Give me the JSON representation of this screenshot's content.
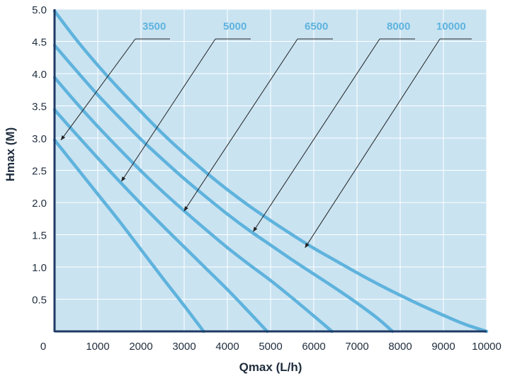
{
  "chart_data": {
    "type": "line",
    "xlabel": "Qmax (L/h)",
    "ylabel": "Hmax (M)",
    "xlim": [
      0,
      10000
    ],
    "ylim": [
      0,
      5.0
    ],
    "x_ticks": [
      "0",
      "1000",
      "2000",
      "3000",
      "4000",
      "5000",
      "6000",
      "7000",
      "8000",
      "9000",
      "10000"
    ],
    "y_ticks": [
      "0.5",
      "1.0",
      "1.5",
      "2.0",
      "2.5",
      "3.0",
      "3.5",
      "4.0",
      "4.5",
      "5.0"
    ],
    "grid": true,
    "colors": {
      "plot_bg": "#c9e3f1",
      "series": "#5fb3dd",
      "axis": "#1f3a64",
      "grid": "#ffffff",
      "label": "#5fb3dd",
      "leader": "#222222"
    },
    "series": [
      {
        "name": "3500",
        "x": [
          0,
          500,
          1000,
          1500,
          2000,
          2500,
          3000,
          3450
        ],
        "y": [
          2.97,
          2.55,
          2.13,
          1.71,
          1.27,
          0.83,
          0.4,
          0
        ]
      },
      {
        "name": "5000",
        "x": [
          0,
          500,
          1000,
          1500,
          2000,
          2500,
          3000,
          3500,
          4000,
          4500,
          4920
        ],
        "y": [
          3.44,
          3.06,
          2.69,
          2.33,
          1.98,
          1.64,
          1.31,
          0.98,
          0.65,
          0.3,
          0
        ]
      },
      {
        "name": "6500",
        "x": [
          0,
          500,
          1000,
          1500,
          2000,
          2500,
          3000,
          3500,
          4000,
          4500,
          5000,
          5500,
          6000,
          6420
        ],
        "y": [
          3.94,
          3.55,
          3.18,
          2.83,
          2.49,
          2.17,
          1.87,
          1.58,
          1.3,
          1.04,
          0.79,
          0.52,
          0.24,
          0
        ]
      },
      {
        "name": "8000",
        "x": [
          0,
          500,
          1000,
          1500,
          2000,
          2500,
          3000,
          3500,
          4000,
          4500,
          5000,
          5500,
          6000,
          6500,
          7000,
          7500,
          7820
        ],
        "y": [
          4.44,
          4.05,
          3.67,
          3.32,
          2.98,
          2.67,
          2.37,
          2.09,
          1.82,
          1.57,
          1.34,
          1.11,
          0.89,
          0.67,
          0.44,
          0.19,
          0
        ]
      },
      {
        "name": "10000",
        "x": [
          0,
          500,
          1000,
          1500,
          2000,
          2500,
          3000,
          3500,
          4000,
          4500,
          5000,
          5500,
          6000,
          6500,
          7000,
          7500,
          8000,
          8500,
          9000,
          9500,
          10000
        ],
        "y": [
          4.97,
          4.53,
          4.13,
          3.76,
          3.41,
          3.07,
          2.76,
          2.47,
          2.2,
          1.95,
          1.72,
          1.5,
          1.29,
          1.1,
          0.91,
          0.73,
          0.56,
          0.4,
          0.25,
          0.11,
          0
        ]
      }
    ],
    "annotations": [
      {
        "label": "3500",
        "arrow_to": [
          150,
          2.97
        ]
      },
      {
        "label": "5000",
        "arrow_to": [
          1550,
          2.33
        ]
      },
      {
        "label": "6500",
        "arrow_to": [
          3000,
          1.87
        ]
      },
      {
        "label": "8000",
        "arrow_to": [
          4600,
          1.55
        ]
      },
      {
        "label": "10000",
        "arrow_to": [
          5800,
          1.3
        ]
      }
    ]
  }
}
